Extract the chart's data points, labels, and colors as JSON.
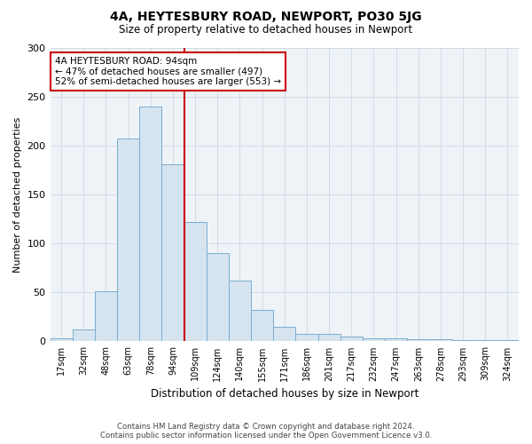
{
  "title": "4A, HEYTESBURY ROAD, NEWPORT, PO30 5JG",
  "subtitle": "Size of property relative to detached houses in Newport",
  "xlabel": "Distribution of detached houses by size in Newport",
  "ylabel": "Number of detached properties",
  "footer": "Contains HM Land Registry data © Crown copyright and database right 2024.\nContains public sector information licensed under the Open Government Licence v3.0.",
  "categories": [
    "17sqm",
    "32sqm",
    "48sqm",
    "63sqm",
    "78sqm",
    "94sqm",
    "109sqm",
    "124sqm",
    "140sqm",
    "155sqm",
    "171sqm",
    "186sqm",
    "201sqm",
    "217sqm",
    "232sqm",
    "247sqm",
    "263sqm",
    "278sqm",
    "293sqm",
    "309sqm",
    "324sqm"
  ],
  "values": [
    3,
    12,
    51,
    207,
    240,
    181,
    122,
    90,
    62,
    32,
    15,
    8,
    8,
    5,
    3,
    3,
    2,
    2,
    1,
    1,
    1
  ],
  "bar_color": "#d6e4f0",
  "bar_edge_color": "#7aadcf",
  "vline_x_idx": 5,
  "vline_color": "#cc0000",
  "annotation_text": "4A HEYTESBURY ROAD: 94sqm\n← 47% of detached houses are smaller (497)\n52% of semi-detached houses are larger (553) →",
  "annotation_box_edge": "#cc0000",
  "ylim": [
    0,
    300
  ],
  "yticks": [
    0,
    50,
    100,
    150,
    200,
    250,
    300
  ],
  "background_color": "#ffffff",
  "grid_color": "#d0d8e0"
}
